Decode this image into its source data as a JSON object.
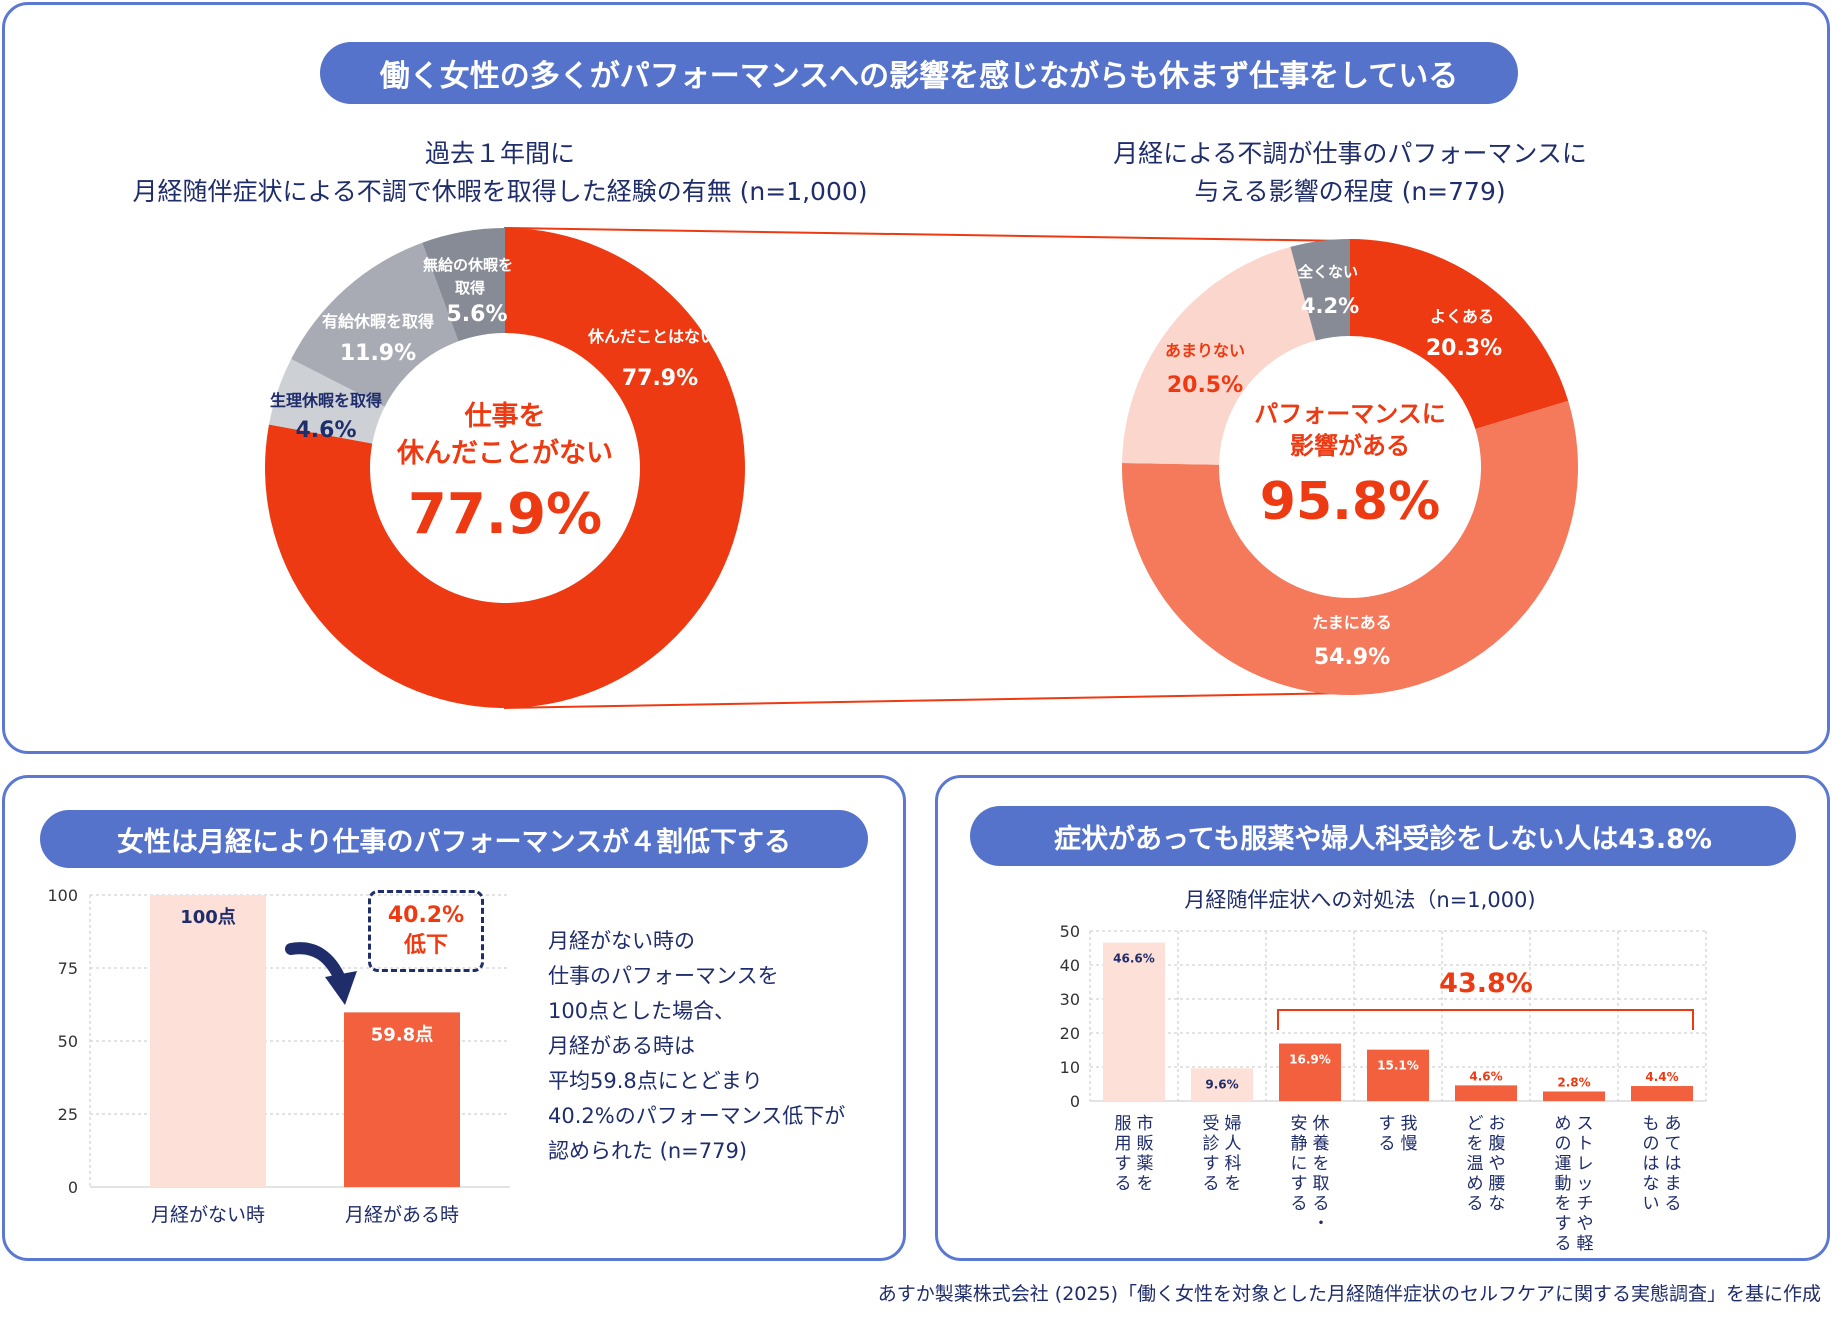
{
  "top": {
    "banner": "働く女性の多くがパフォーマンスへの影響を感じながらも休まず仕事をしている",
    "left": {
      "title_line1": "過去１年間に",
      "title_line2": "月経随伴症状による不調で休暇を取得した経験の有無 (n=1,000)",
      "center_line1": "仕事を",
      "center_line2": "休んだことがない",
      "center_value": "77.9%"
    },
    "right": {
      "title_line1": "月経による不調が仕事のパフォーマンスに",
      "title_line2": "与える影響の程度 (n=779)",
      "center_line1": "パフォーマンスに",
      "center_line2": "影響がある",
      "center_value": "95.8%"
    }
  },
  "bottom_left": {
    "banner": "女性は月経により仕事のパフォーマンスが４割低下する",
    "callout_line1": "40.2%",
    "callout_line2": "低下",
    "desc": [
      "月経がない時の",
      "仕事のパフォーマンスを",
      "100点とした場合、",
      "月経がある時は",
      "平均59.8点にとどまり",
      "40.2%のパフォーマンス低下が",
      "認められた (n=779)"
    ]
  },
  "bottom_right": {
    "banner": "症状があっても服薬や婦人科受診をしない人は43.8%",
    "title": "月経随伴症状への対処法（n=1,000)",
    "bracket_label": "43.8%"
  },
  "source": "あすか製薬株式会社 (2025)「働く女性を対象とした月経随伴症状のセルフケアに関する実態調査」を基に作成",
  "colors": {
    "navy": "#1f2d6b",
    "banner_blue": "#5673cc",
    "red": "#ee3a12",
    "orange": "#f47a5b",
    "pale": "#fbd6cc",
    "gray_dark": "#878b96",
    "gray_mid": "#a8abb3",
    "gray_light": "#cdd0d5"
  },
  "chart_data": [
    {
      "type": "pie",
      "donut": true,
      "slices": [
        {
          "label": "休んだことはない",
          "value": 77.9,
          "color": "#ee3a12"
        },
        {
          "label": "生理休暇を取得",
          "value": 4.6,
          "color": "#cdd0d5"
        },
        {
          "label": "有給休暇を取得",
          "value": 11.9,
          "color": "#a8abb3"
        },
        {
          "label": "無給の休暇を取得",
          "value": 5.6,
          "color": "#878b96"
        }
      ]
    },
    {
      "type": "pie",
      "donut": true,
      "slices": [
        {
          "label": "よくある",
          "value": 20.3,
          "color": "#ee3a12"
        },
        {
          "label": "たまにある",
          "value": 54.9,
          "color": "#f47a5b"
        },
        {
          "label": "あまりない",
          "value": 20.5,
          "color": "#fbd6cc"
        },
        {
          "label": "全くない",
          "value": 4.2,
          "color": "#878b96"
        }
      ]
    },
    {
      "type": "bar",
      "categories": [
        "月経がない時",
        "月経がある時"
      ],
      "values": [
        100,
        59.8
      ],
      "value_labels": [
        "100点",
        "59.8点"
      ],
      "colors": [
        "#fde0d8",
        "#f2603e"
      ],
      "ylim": [
        0,
        100
      ],
      "yticks": [
        0,
        25,
        50,
        75,
        100
      ],
      "grid": true
    },
    {
      "type": "bar",
      "categories": [
        "市販薬を服用する",
        "婦人科を受診する",
        "休養を取る・安静にする",
        "我慢する",
        "お腹や腰などを温める",
        "ストレッチや軽めの運動をする",
        "あてはまるものはない"
      ],
      "values": [
        46.6,
        9.6,
        16.9,
        15.1,
        4.6,
        2.8,
        4.4
      ],
      "value_labels": [
        "46.6%",
        "9.6%",
        "16.9%",
        "15.1%",
        "4.6%",
        "2.8%",
        "4.4%"
      ],
      "colors": [
        "#fde0d8",
        "#fde0d8",
        "#f2603e",
        "#f2603e",
        "#f2603e",
        "#f2603e",
        "#f2603e"
      ],
      "ylim": [
        0,
        50
      ],
      "yticks": [
        0,
        10,
        20,
        30,
        40,
        50
      ],
      "grid": true
    }
  ]
}
